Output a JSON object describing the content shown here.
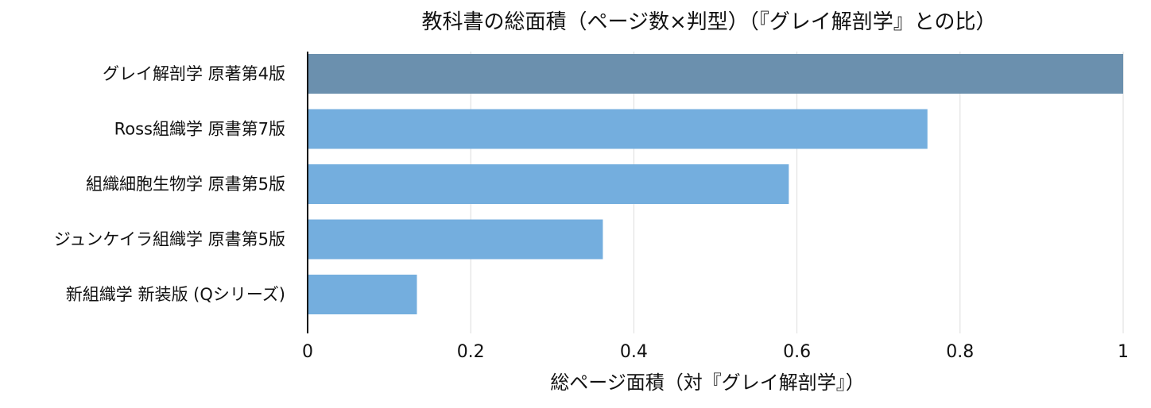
{
  "chart_data": {
    "type": "bar",
    "orientation": "horizontal",
    "title": "教科書の総面積（ページ数×判型）（『グレイ解剖学』との比）",
    "xlabel": "総ページ面積（対『グレイ解剖学』）",
    "ylabel": "",
    "xlim": [
      0,
      1
    ],
    "xticks": [
      "0",
      "0.2",
      "0.4",
      "0.6",
      "0.8",
      "1"
    ],
    "grid": "vertical",
    "categories": [
      "グレイ解剖学 原著第4版",
      "Ross組織学 原書第7版",
      "組織細胞生物学 原書第5版",
      "ジュンケイラ組織学 原書第5版",
      "新組織学 新装版 (Qシリーズ)"
    ],
    "values": [
      1.0,
      0.76,
      0.59,
      0.362,
      0.134
    ],
    "colors": [
      "#6b90ae",
      "#74aede",
      "#74aede",
      "#74aede",
      "#74aede"
    ]
  }
}
